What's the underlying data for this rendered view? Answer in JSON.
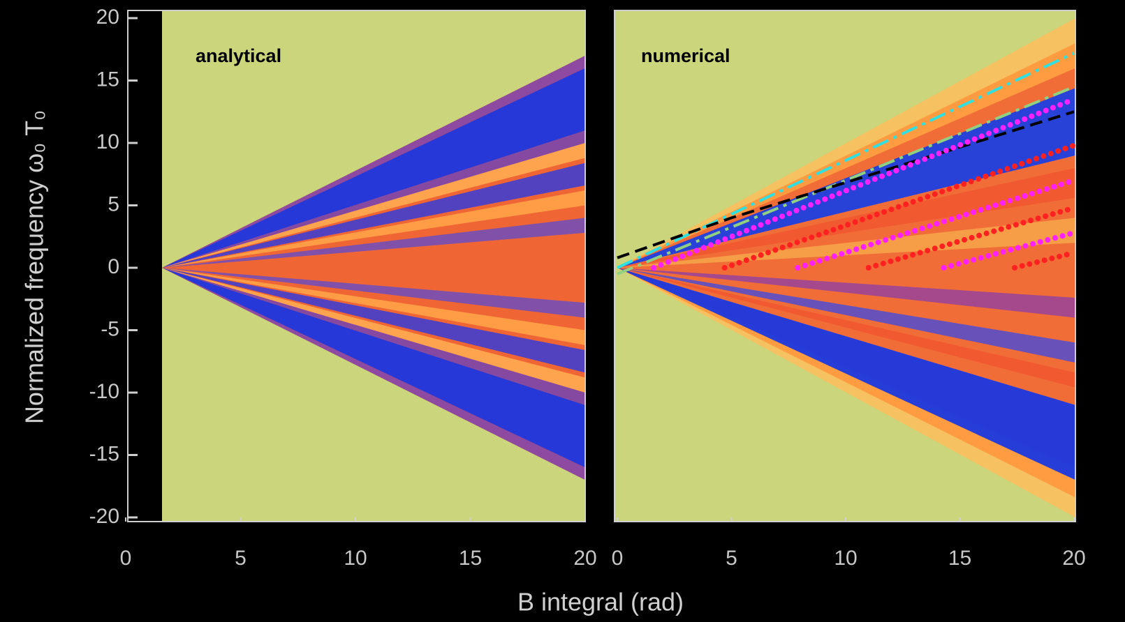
{
  "chart_data": [
    {
      "type": "heatmap",
      "annotation": "analytical",
      "xlabel": "B integral (rad)",
      "ylabel": "Normalized frequency ω₀ T₀",
      "xlim": [
        0,
        20
      ],
      "xticks": [
        0,
        5,
        10,
        15,
        20
      ],
      "ylim": [
        -20,
        20
      ],
      "yticks": [
        20,
        15,
        10,
        5,
        0,
        -5,
        -10,
        -15,
        -20
      ]
    },
    {
      "type": "heatmap",
      "annotation": "numerical",
      "xlim": [
        0,
        20
      ],
      "xticks": [
        0,
        5,
        10,
        15,
        20
      ],
      "ylim": [
        -20,
        20
      ],
      "series": [
        {
          "color": "#30e0e0",
          "style": "dashdot",
          "x": [
            0,
            20
          ],
          "values": [
            0,
            17.2
          ]
        },
        {
          "color": "#90d080",
          "style": "dashdot",
          "x": [
            0,
            20
          ],
          "values": [
            -0.5,
            14.5
          ]
        },
        {
          "color": "#000000",
          "style": "dashed",
          "x": [
            0,
            5,
            20
          ],
          "values": [
            0.8,
            4,
            12.5
          ]
        },
        {
          "color": "#ff20ff",
          "style": "circles",
          "x": [
            1.6,
            20
          ],
          "values": [
            0,
            13.5
          ]
        },
        {
          "color": "#ff2020",
          "style": "circles",
          "x": [
            4.7,
            20
          ],
          "values": [
            0,
            9.8
          ]
        },
        {
          "color": "#ff20ff",
          "style": "circles",
          "x": [
            7.9,
            20
          ],
          "values": [
            0,
            7
          ]
        },
        {
          "color": "#ff2020",
          "style": "circles",
          "x": [
            11,
            20
          ],
          "values": [
            0,
            4.8
          ]
        },
        {
          "color": "#ff20ff",
          "style": "circles",
          "x": [
            14.3,
            20
          ],
          "values": [
            0,
            2.8
          ]
        },
        {
          "color": "#ff2020",
          "style": "circles",
          "x": [
            17.4,
            20
          ],
          "values": [
            0,
            1.2
          ]
        }
      ]
    }
  ]
}
